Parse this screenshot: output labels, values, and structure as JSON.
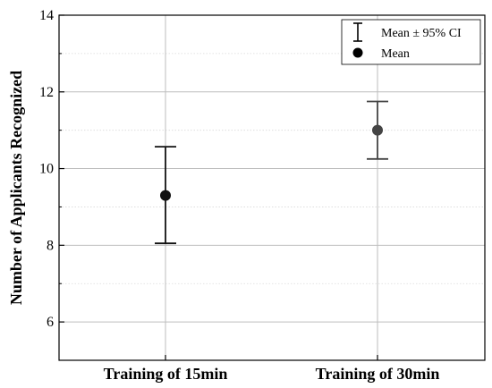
{
  "chart_data": {
    "type": "scatter",
    "ylabel": "Number of Applicants Recognized",
    "xlabel": "",
    "ylim": [
      5,
      14
    ],
    "yticks": [
      6,
      8,
      10,
      12,
      14
    ],
    "categories": [
      "Training of 15min",
      "Training of 30min"
    ],
    "series": [
      {
        "name": "Mean",
        "values": [
          9.3,
          11.0
        ],
        "ci_lower": [
          8.05,
          10.25
        ],
        "ci_upper": [
          10.57,
          11.75
        ],
        "colors": [
          "#111111",
          "#444444"
        ]
      }
    ],
    "legend": {
      "position": "top-right",
      "entries": [
        {
          "label": "Mean ± 95% CI",
          "symbol": "errorbar-icon"
        },
        {
          "label": "Mean",
          "symbol": "circle-marker-icon"
        }
      ]
    },
    "grid": true
  }
}
